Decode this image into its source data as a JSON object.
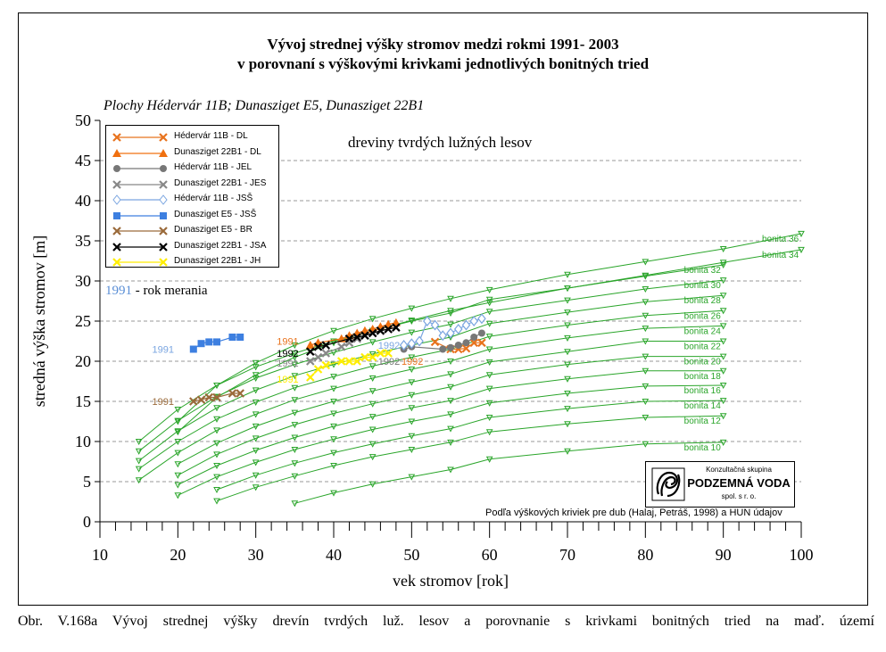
{
  "title_line1": "Vývoj strednej výšky stromov medzi rokmi 1991- 2003",
  "title_line2": "v porovnaní s výškovými krivkami jednotlivých bonitných tried",
  "subtitle": "Plochy Hédervár 11B; Dunasziget E5, Dunasziget 22B1",
  "annotation": "dreviny tvrdých lužných lesov",
  "year_note": {
    "year": "1991",
    "text": " - rok merania"
  },
  "source_note": "Podľa výškových kriviek pre dub (Halaj, Petráš, 1998) a HUN údajov",
  "logo": {
    "top": "Konzultačná skupina",
    "main": "PODZEMNÁ VODA",
    "sub": "spol. s r. o."
  },
  "caption": "Obr. V.168a Vývoj strednej výšky drevín tvrdých luž. lesov a porovnanie s krivkami bonitných tried na maď. území",
  "chart_data": {
    "type": "line",
    "xlabel": "vek stromov [rok]",
    "ylabel": "stredná výška stromov [m]",
    "xlim": [
      10,
      100
    ],
    "ylim": [
      0,
      50
    ],
    "x_ticks": [
      10,
      20,
      30,
      40,
      50,
      60,
      70,
      80,
      90,
      100
    ],
    "y_ticks": [
      0,
      5,
      10,
      15,
      20,
      25,
      30,
      35,
      40,
      45,
      50
    ],
    "grid": "horizontal dashed",
    "legend_position": "top-left",
    "bonita_curves": {
      "color": "#2aa52a",
      "x": [
        15,
        20,
        25,
        30,
        35,
        40,
        45,
        50,
        55,
        60,
        70,
        80,
        90,
        100
      ],
      "curves": [
        {
          "label": "bonita 36",
          "start_x": 20,
          "y": [
            null,
            12.5,
            17.0,
            19.8,
            22.0,
            23.8,
            25.3,
            26.6,
            27.8,
            28.9,
            30.8,
            32.4,
            34.0,
            35.9
          ]
        },
        {
          "label": "bonita 34",
          "start_x": 20,
          "y": [
            null,
            11.2,
            15.5,
            18.3,
            20.5,
            22.3,
            23.8,
            25.1,
            26.3,
            27.3,
            29.1,
            30.7,
            32.3,
            33.9
          ]
        },
        {
          "label": "bonita 32",
          "start_x": 15,
          "y": [
            10.0,
            14.0,
            17.0,
            19.3,
            21.0,
            22.5,
            23.8,
            25.0,
            26.0,
            27.7,
            29.1,
            30.6,
            32.0,
            null
          ]
        },
        {
          "label": "bonita 30",
          "start_x": 15,
          "y": [
            8.8,
            12.6,
            15.6,
            17.9,
            19.6,
            21.1,
            22.4,
            23.6,
            24.6,
            26.2,
            27.6,
            29.0,
            30.1,
            null
          ]
        },
        {
          "label": "bonita 28",
          "start_x": 15,
          "y": [
            7.6,
            11.3,
            14.2,
            16.4,
            18.2,
            19.6,
            20.9,
            22.0,
            23.0,
            24.7,
            26.1,
            27.4,
            28.2,
            null
          ]
        },
        {
          "label": "bonita 26",
          "start_x": 15,
          "y": [
            6.6,
            10.0,
            12.8,
            14.9,
            16.7,
            18.1,
            19.4,
            20.5,
            21.5,
            23.1,
            24.5,
            25.7,
            26.3,
            null
          ]
        },
        {
          "label": "bonita 24",
          "start_x": 15,
          "y": [
            5.2,
            8.6,
            11.4,
            13.4,
            15.2,
            16.6,
            17.9,
            19.0,
            20.0,
            21.5,
            22.9,
            24.1,
            24.4,
            null
          ]
        },
        {
          "label": "bonita 22",
          "start_x": 20,
          "y": [
            null,
            7.2,
            9.8,
            11.9,
            13.6,
            15.0,
            16.3,
            17.4,
            18.4,
            19.9,
            21.2,
            22.5,
            22.5,
            null
          ]
        },
        {
          "label": "bonita 20",
          "start_x": 20,
          "y": [
            null,
            5.8,
            8.4,
            10.4,
            12.1,
            13.5,
            14.7,
            15.8,
            16.8,
            18.3,
            19.6,
            20.6,
            20.6,
            null
          ]
        },
        {
          "label": "bonita 18",
          "start_x": 20,
          "y": [
            null,
            4.6,
            7.0,
            8.9,
            10.5,
            11.9,
            13.1,
            14.2,
            15.1,
            16.6,
            17.8,
            18.8,
            18.8,
            null
          ]
        },
        {
          "label": "bonita 16",
          "start_x": 20,
          "y": [
            null,
            3.3,
            5.6,
            7.4,
            9.0,
            10.3,
            11.5,
            12.5,
            13.4,
            14.8,
            16.0,
            16.9,
            17.0,
            null
          ]
        },
        {
          "label": "bonita 14",
          "start_x": 25,
          "y": [
            null,
            null,
            4.0,
            5.8,
            7.3,
            8.6,
            9.7,
            10.7,
            11.6,
            13.0,
            14.1,
            15.0,
            15.1,
            null
          ]
        },
        {
          "label": "bonita 12",
          "start_x": 25,
          "y": [
            null,
            null,
            2.6,
            4.3,
            5.7,
            7.0,
            8.1,
            9.0,
            9.9,
            11.2,
            12.2,
            13.0,
            13.2,
            null
          ]
        },
        {
          "label": "bonita 10",
          "start_x": 35,
          "y": [
            null,
            null,
            null,
            null,
            2.3,
            3.6,
            4.7,
            5.6,
            6.5,
            7.8,
            8.8,
            9.7,
            9.9,
            null
          ]
        }
      ]
    },
    "series": [
      {
        "name": "Hédervár 11B - DL",
        "marker": "x",
        "color": "#e8731e",
        "points": [
          [
            53,
            22.4
          ],
          [
            55,
            21.5
          ],
          [
            56,
            21.5
          ],
          [
            57,
            21.6
          ],
          [
            58,
            22.3
          ],
          [
            59,
            22.3
          ]
        ]
      },
      {
        "name": "Dunasziget 22B1 - DL",
        "marker": "triangle",
        "color": "#f07010",
        "points": [
          [
            37,
            22.0
          ],
          [
            38,
            22.3
          ],
          [
            41,
            22.8
          ],
          [
            42,
            23.2
          ],
          [
            43,
            23.5
          ],
          [
            44,
            23.8
          ],
          [
            45,
            24.0
          ],
          [
            46,
            24.3
          ],
          [
            47,
            24.6
          ],
          [
            48,
            24.8
          ]
        ]
      },
      {
        "name": "Hédervár 11B - JEL",
        "marker": "circle",
        "color": "#777777",
        "points": [
          [
            49,
            21.5
          ],
          [
            50,
            21.8
          ],
          [
            54,
            21.5
          ],
          [
            55,
            21.7
          ],
          [
            56,
            22.0
          ],
          [
            57,
            22.3
          ],
          [
            58,
            23.0
          ],
          [
            59,
            23.5
          ]
        ]
      },
      {
        "name": "Dunasziget 22B1 - JES",
        "marker": "x",
        "color": "#888888",
        "points": [
          [
            37,
            20.0
          ],
          [
            38,
            20.5
          ],
          [
            39,
            21.0
          ],
          [
            41,
            21.8
          ],
          [
            42,
            22.3
          ],
          [
            43,
            22.8
          ],
          [
            44,
            23.2
          ],
          [
            45,
            23.5
          ],
          [
            46,
            23.8
          ],
          [
            47,
            24.0
          ]
        ]
      },
      {
        "name": "Hédervár 11B - JSŠ",
        "marker": "diamond",
        "color": "#7aa5e0",
        "points": [
          [
            49,
            22.0
          ],
          [
            50,
            22.2
          ],
          [
            51,
            22.5
          ],
          [
            52,
            25.0
          ],
          [
            53,
            24.5
          ],
          [
            54,
            23.2
          ],
          [
            55,
            23.5
          ],
          [
            56,
            24.0
          ],
          [
            57,
            24.5
          ],
          [
            58,
            25.0
          ],
          [
            59,
            25.3
          ]
        ]
      },
      {
        "name": "Dunasziget E5 - JSŠ",
        "marker": "square",
        "color": "#3d7fe0",
        "points": [
          [
            22,
            21.5
          ],
          [
            23,
            22.2
          ],
          [
            24,
            22.4
          ],
          [
            25,
            22.4
          ],
          [
            27,
            23.0
          ],
          [
            28,
            23.0
          ]
        ]
      },
      {
        "name": "Dunasziget E5 - BR",
        "marker": "x",
        "color": "#9a6a3a",
        "points": [
          [
            22,
            15.0
          ],
          [
            23,
            15.2
          ],
          [
            24,
            15.5
          ],
          [
            25,
            15.5
          ],
          [
            27,
            16.0
          ],
          [
            28,
            16.0
          ]
        ]
      },
      {
        "name": "Dunasziget 22B1 - JSA",
        "marker": "x",
        "color": "#000000",
        "points": [
          [
            37,
            21.2
          ],
          [
            38,
            21.8
          ],
          [
            39,
            22.0
          ],
          [
            42,
            22.8
          ],
          [
            43,
            23.0
          ],
          [
            44,
            23.2
          ],
          [
            45,
            23.5
          ],
          [
            46,
            23.8
          ],
          [
            47,
            24.0
          ],
          [
            48,
            24.2
          ]
        ]
      },
      {
        "name": "Dunasziget 22B1 - JH",
        "marker": "x",
        "color": "#ffee00",
        "points": [
          [
            37,
            18.0
          ],
          [
            38,
            19.0
          ],
          [
            39,
            19.5
          ],
          [
            41,
            20.0
          ],
          [
            42,
            20.0
          ],
          [
            43,
            20.0
          ],
          [
            44,
            20.5
          ],
          [
            45,
            20.5
          ],
          [
            46,
            21.0
          ],
          [
            47,
            21.0
          ]
        ]
      }
    ],
    "year_labels": [
      {
        "text": "1991",
        "x": 19.5,
        "y": 21.5,
        "color": "#7aa5e0"
      },
      {
        "text": "1991",
        "x": 19.5,
        "y": 15.0,
        "color": "#9a6a3a"
      },
      {
        "text": "1992",
        "x": 35.5,
        "y": 21.0,
        "color": "#000000"
      },
      {
        "text": "1991",
        "x": 35.5,
        "y": 22.5,
        "color": "#e8731e"
      },
      {
        "text": "1991",
        "x": 35.5,
        "y": 19.8,
        "color": "#888888"
      },
      {
        "text": "1991",
        "x": 35.5,
        "y": 17.8,
        "color": "#ffee00"
      },
      {
        "text": "1992",
        "x": 48.5,
        "y": 22.0,
        "color": "#7aa5e0"
      },
      {
        "text": "1992",
        "x": 48.5,
        "y": 20.0,
        "color": "#777777"
      },
      {
        "text": "1992",
        "x": 51.5,
        "y": 20.0,
        "color": "#e8731e"
      }
    ]
  }
}
